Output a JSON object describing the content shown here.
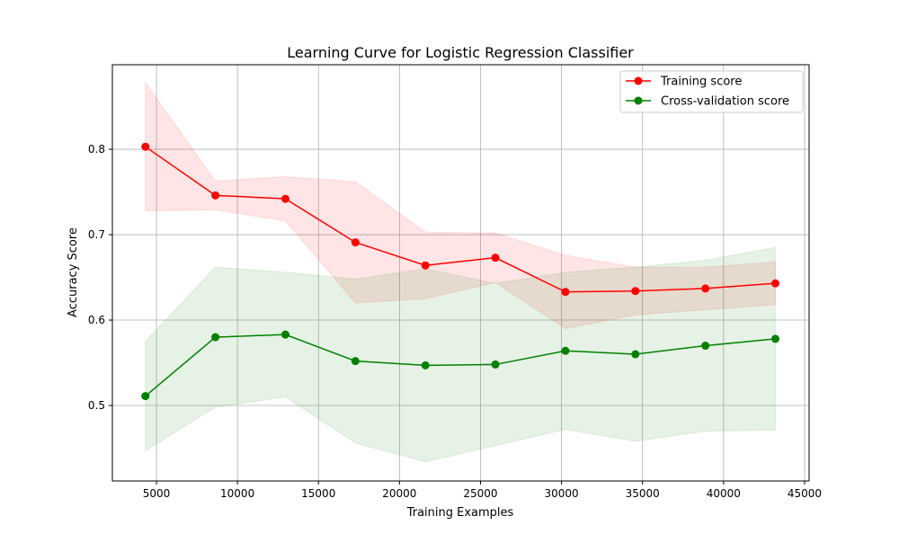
{
  "chart_data": {
    "type": "line",
    "title": "Learning Curve for Logistic Regression Classifier",
    "xlabel": "Training Examples",
    "ylabel": "Accuracy Score",
    "xlim": [
      2280,
      45280
    ],
    "ylim": [
      0.4116,
      0.899
    ],
    "xticks": [
      5000,
      10000,
      15000,
      20000,
      25000,
      30000,
      35000,
      40000,
      45000
    ],
    "yticks": [
      0.5,
      0.6,
      0.7,
      0.8
    ],
    "ytick_labels": [
      "0.5",
      "0.6",
      "0.7",
      "0.8"
    ],
    "grid": true,
    "legend_placement": "upper right",
    "x": [
      4320,
      8640,
      12960,
      17280,
      21600,
      25920,
      30240,
      34560,
      38880,
      43200
    ],
    "series": [
      {
        "name": "Training score",
        "color": "#ff0000",
        "values": [
          0.803,
          0.746,
          0.742,
          0.691,
          0.664,
          0.673,
          0.633,
          0.634,
          0.637,
          0.643
        ],
        "std": [
          0.075,
          0.017,
          0.026,
          0.071,
          0.039,
          0.029,
          0.043,
          0.028,
          0.025,
          0.025
        ]
      },
      {
        "name": "Cross-validation score",
        "color": "#008000",
        "values": [
          0.511,
          0.58,
          0.583,
          0.552,
          0.547,
          0.548,
          0.564,
          0.56,
          0.57,
          0.578
        ],
        "std": [
          0.064,
          0.082,
          0.073,
          0.096,
          0.113,
          0.095,
          0.092,
          0.102,
          0.1,
          0.107
        ]
      }
    ]
  }
}
